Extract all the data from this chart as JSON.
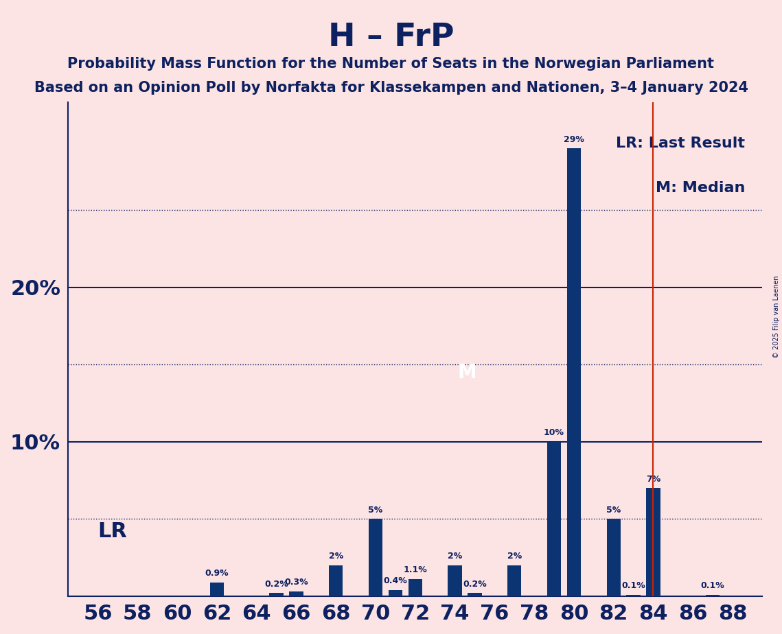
{
  "title": "H – FrP",
  "subtitle1": "Probability Mass Function for the Number of Seats in the Norwegian Parliament",
  "subtitle2": "Based on an Opinion Poll by Norfakta for Klassekampen and Nationen, 3–4 January 2024",
  "seats": [
    56,
    57,
    58,
    59,
    60,
    61,
    62,
    63,
    64,
    65,
    66,
    67,
    68,
    69,
    70,
    71,
    72,
    73,
    74,
    75,
    76,
    77,
    78,
    79,
    80,
    81,
    82,
    83,
    84,
    85,
    86,
    87,
    88
  ],
  "probs": [
    0.0,
    0.0,
    0.0,
    0.0,
    0.0,
    0.0,
    0.9,
    0.0,
    0.0,
    0.2,
    0.3,
    0.0,
    2.0,
    0.0,
    5.0,
    0.4,
    1.1,
    0.0,
    2.0,
    0.2,
    0.0,
    2.0,
    0.0,
    10.0,
    29.0,
    0.0,
    5.0,
    0.1,
    7.0,
    0.0,
    0.0,
    0.1,
    0.0
  ],
  "probs_labels": [
    "0%",
    "0%",
    "0%",
    "0%",
    "0%",
    "0%",
    "0.9%",
    "0%",
    "0%",
    "0.2%",
    "0.3%",
    "0%",
    "2%",
    "0%",
    "5%",
    "0.4%",
    "1.1%",
    "0%",
    "2%",
    "0.2%",
    "0%",
    "2%",
    "0%",
    "10%",
    "29%",
    "0%",
    "5%",
    "0.1%",
    "7%",
    "0%",
    "0%",
    "0.1%",
    "0%"
  ],
  "bar_color": "#0d3472",
  "background_color": "#fce4e4",
  "text_color": "#0d2060",
  "lr_x": 84,
  "median_x": 75,
  "lr_line_color": "#cc2200",
  "copyright": "© 2025 Filip van Laenen",
  "ylabel_ticks": [
    0,
    10,
    20
  ],
  "dotted_lines": [
    5,
    15,
    25
  ],
  "ylim": [
    0,
    32
  ],
  "xlim": [
    54.5,
    89.5
  ],
  "xticks": [
    56,
    58,
    60,
    62,
    64,
    66,
    68,
    70,
    72,
    74,
    76,
    78,
    80,
    82,
    84,
    86,
    88
  ],
  "lr_label": "LR",
  "lr_legend": "LR: Last Result",
  "m_legend": "M: Median",
  "bar_width": 0.7
}
